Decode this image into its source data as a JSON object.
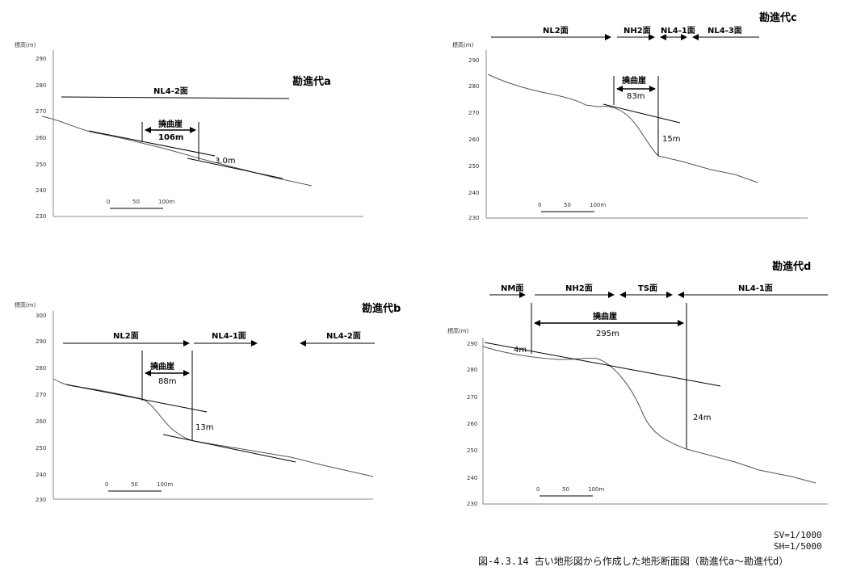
{
  "panels": {
    "a": {
      "title": "勘進代a",
      "y_axis_label": "標高(m)",
      "y_ticks": [
        "290",
        "280",
        "270",
        "260",
        "250",
        "240",
        "230"
      ],
      "surfaces": [
        "NL4-2面"
      ],
      "bend_label": "撓曲崖",
      "bend_width": "106m",
      "offset": "3.0m",
      "scale_ticks": [
        "0",
        "50",
        "100m"
      ]
    },
    "b": {
      "title": "勘進代b",
      "y_axis_label": "標高(m)",
      "y_ticks": [
        "300",
        "290",
        "280",
        "270",
        "260",
        "250",
        "240",
        "230"
      ],
      "surfaces": [
        "NL2面",
        "NL4-1面",
        "NL4-2面"
      ],
      "bend_label": "撓曲崖",
      "bend_width": "88m",
      "offset": "13m",
      "scale_ticks": [
        "0",
        "50",
        "100m"
      ]
    },
    "c": {
      "title": "勘進代c",
      "y_axis_label": "標高(m)",
      "y_ticks": [
        "290",
        "280",
        "270",
        "260",
        "250",
        "240",
        "230"
      ],
      "surfaces": [
        "NL2面",
        "NH2面",
        "NL4-1面",
        "NL4-3面"
      ],
      "bend_label": "撓曲崖",
      "bend_width": "83m",
      "offset": "15m",
      "scale_ticks": [
        "0",
        "50",
        "100m"
      ]
    },
    "d": {
      "title": "勘進代d",
      "y_axis_label": "標高(m)",
      "y_ticks": [
        "290",
        "280",
        "270",
        "260",
        "250",
        "240",
        "230"
      ],
      "surfaces": [
        "NM面",
        "NH2面",
        "TS面",
        "NL4-1面"
      ],
      "bend_label": "撓曲崖",
      "bend_width": "295m",
      "offset": "24m",
      "left_offset": "4m",
      "scale_ticks": [
        "0",
        "50",
        "100m"
      ]
    }
  },
  "footer": {
    "sv": "SV=1/1000",
    "sh": "SH=1/5000",
    "caption": "図-4.3.14 古い地形図から作成した地形断面図（勘進代a～勘進代d）"
  }
}
